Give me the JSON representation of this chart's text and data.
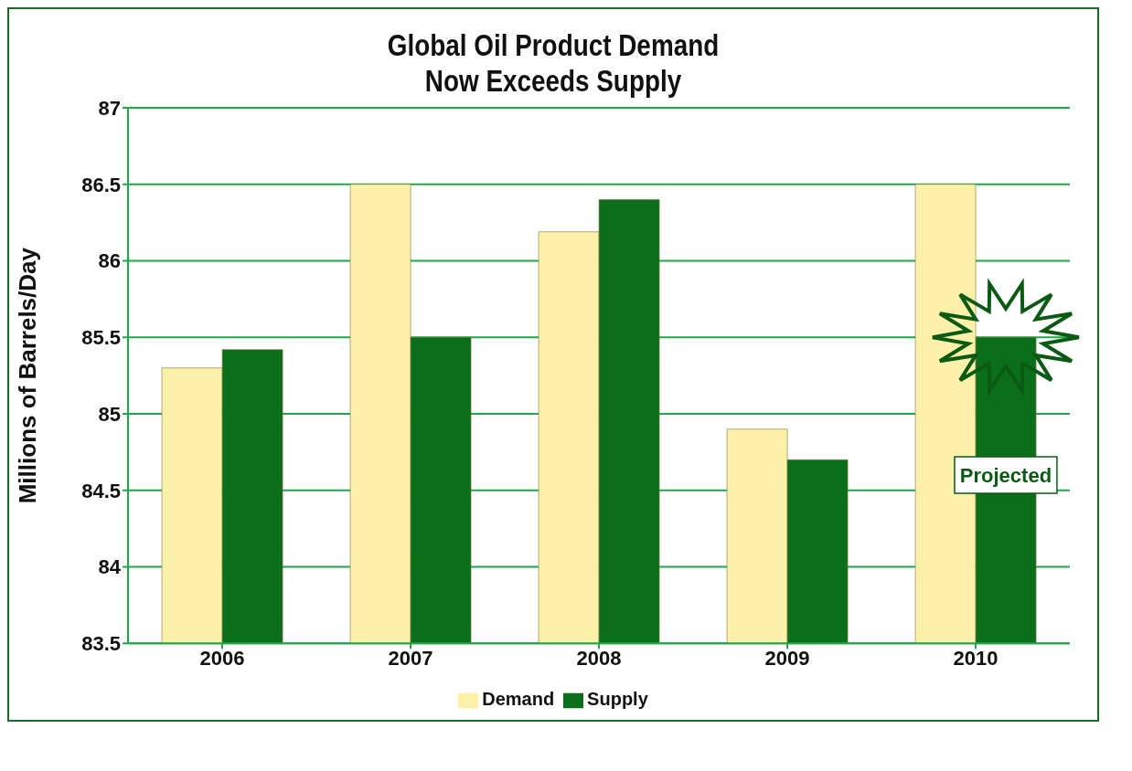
{
  "chart_data": {
    "type": "bar",
    "title": "Global Oil Product Demand\nNow Exceeds Supply",
    "ylabel": "Millions of Barrels/Day",
    "categories": [
      "2006",
      "2007",
      "2008",
      "2009",
      "2010"
    ],
    "series": [
      {
        "name": "Demand",
        "color": "#fdf0a8",
        "values": [
          85.3,
          86.5,
          86.19,
          84.9,
          86.5
        ]
      },
      {
        "name": "Supply",
        "color": "#0b6e1a",
        "values": [
          85.42,
          85.5,
          86.4,
          84.7,
          85.5
        ]
      }
    ],
    "ylim": [
      83.5,
      87
    ],
    "yticks": [
      83.5,
      84,
      84.5,
      85,
      85.5,
      86,
      86.5,
      87
    ],
    "grid": "y",
    "legend": "bottom",
    "annotations": [
      {
        "text": "Projected",
        "x": "2010",
        "y": 84.6
      }
    ]
  }
}
